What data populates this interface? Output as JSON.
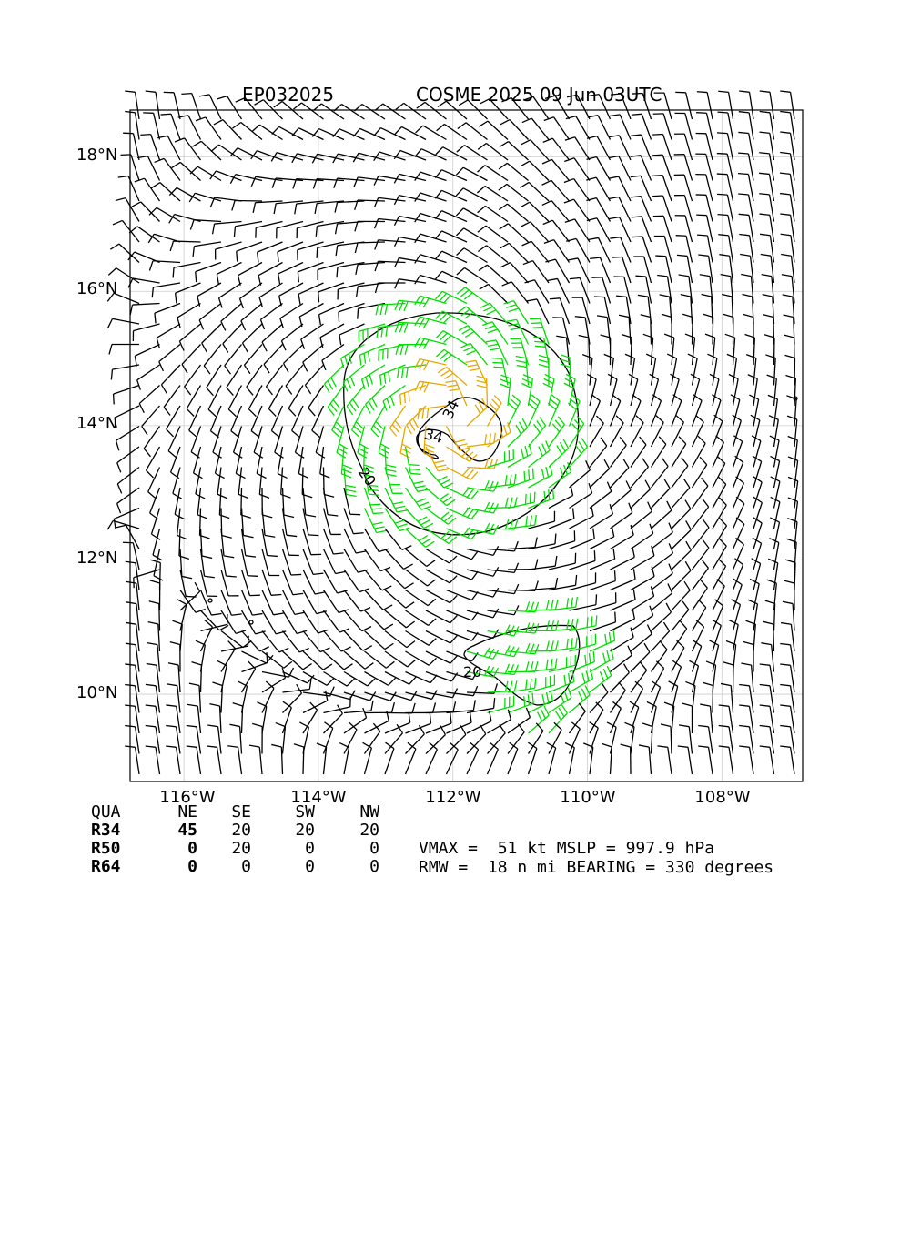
{
  "title": {
    "left": "EP032025",
    "right": "COSME 2025 09 Jun 03UTC"
  },
  "axes": {
    "lat_labels": [
      "18°N",
      "16°N",
      "14°N",
      "12°N",
      "10°N"
    ],
    "lon_labels": [
      "116°W",
      "114°W",
      "112°W",
      "110°W",
      "108°W"
    ],
    "lon_range": [
      -116.8,
      -106.8
    ],
    "lat_range": [
      8.7,
      18.7
    ]
  },
  "storm": {
    "center_lon": -112.0,
    "center_lat": 14.1
  },
  "contours": {
    "labels": [
      "20",
      "34",
      "34",
      "20"
    ]
  },
  "colors": {
    "barb": "#000000",
    "barb_34": "#00dd00",
    "barb_50": "#e6a800",
    "contour": "#000000",
    "grid": "#cccccc"
  },
  "wind_radii": {
    "headers": [
      "QUA",
      "NE",
      "SE",
      "SW",
      "NW"
    ],
    "rows": [
      {
        "label": "R34",
        "values": [
          "45",
          "20",
          "20",
          "20"
        ]
      },
      {
        "label": "R50",
        "values": [
          "0",
          "20",
          "0",
          "0"
        ]
      },
      {
        "label": "R64",
        "values": [
          "0",
          "0",
          "0",
          "0"
        ]
      }
    ]
  },
  "info": {
    "line1": "VMAX =  51 kt MSLP = 997.9 hPa",
    "line2": "RMW =  18 n mi BEARING = 330 degrees"
  }
}
